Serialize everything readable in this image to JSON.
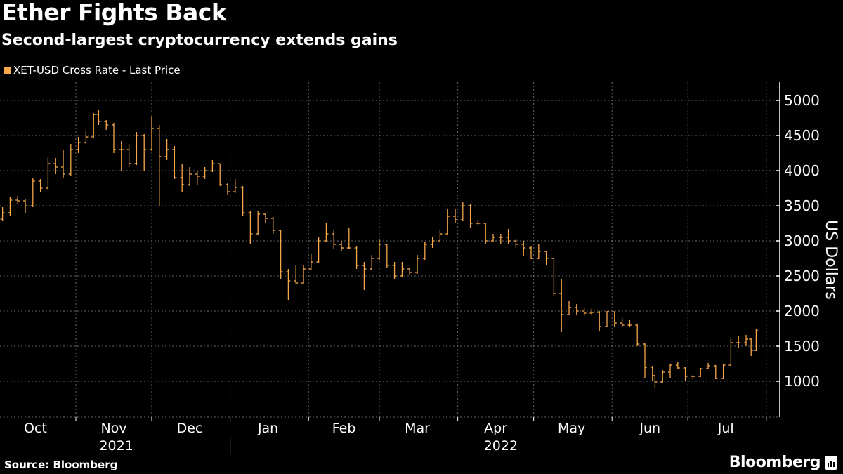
{
  "header": {
    "title": "Ether Fights Back",
    "subtitle": "Second-largest cryptocurrency extends gains"
  },
  "footer": {
    "source": "Source: Bloomberg",
    "logo_text": "Bloomberg"
  },
  "colors": {
    "series": "#f7a84a",
    "background": "#000000",
    "grid": "#666666",
    "text": "#ffffff"
  },
  "chart_data": {
    "type": "ohlc",
    "title": "Ether Fights Back",
    "subtitle": "Second-largest cryptocurrency extends gains",
    "legend": {
      "position": "top-left",
      "entries": [
        "XET-USD Cross Rate - Last Price"
      ]
    },
    "ylabel": "US Dollars",
    "yaxis_side": "right",
    "ylim": [
      490,
      5260
    ],
    "yticks": [
      1000,
      1500,
      2000,
      2500,
      3000,
      3500,
      4000,
      4500,
      5000
    ],
    "xlim": [
      "2021-09-30",
      "2022-07-31"
    ],
    "xtick_labels": [
      {
        "label": "Oct",
        "date": "2021-10-16"
      },
      {
        "label": "Nov",
        "date": "2021-11-16"
      },
      {
        "label": "Dec",
        "date": "2021-12-16"
      },
      {
        "label": "Jan",
        "date": "2022-01-16"
      },
      {
        "label": "Feb",
        "date": "2022-02-15"
      },
      {
        "label": "Mar",
        "date": "2022-03-16"
      },
      {
        "label": "Apr",
        "date": "2022-04-16"
      },
      {
        "label": "May",
        "date": "2022-05-16"
      },
      {
        "label": "Jun",
        "date": "2022-06-16"
      },
      {
        "label": "Jul",
        "date": "2022-07-16"
      }
    ],
    "year_labels": [
      {
        "label": "2021",
        "date": "2021-11-17"
      },
      {
        "label": "2022",
        "date": "2022-04-18"
      }
    ],
    "grid": true,
    "series": [
      {
        "name": "XET-USD Cross Rate - Last Price",
        "fields": [
          "date",
          "open",
          "high",
          "low",
          "close"
        ],
        "values": [
          [
            "2021-09-30",
            3000,
            3330,
            2970,
            3310
          ],
          [
            "2021-10-03",
            3310,
            3480,
            3280,
            3400
          ],
          [
            "2021-10-06",
            3400,
            3620,
            3360,
            3580
          ],
          [
            "2021-10-09",
            3580,
            3640,
            3520,
            3570
          ],
          [
            "2021-10-12",
            3570,
            3600,
            3400,
            3500
          ],
          [
            "2021-10-15",
            3500,
            3900,
            3480,
            3850
          ],
          [
            "2021-10-18",
            3850,
            3880,
            3700,
            3750
          ],
          [
            "2021-10-21",
            3750,
            4200,
            3720,
            4100
          ],
          [
            "2021-10-24",
            4100,
            4180,
            3950,
            4050
          ],
          [
            "2021-10-27",
            4050,
            4300,
            3900,
            3950
          ],
          [
            "2021-10-30",
            3950,
            4380,
            3920,
            4300
          ],
          [
            "2021-11-02",
            4300,
            4480,
            4250,
            4400
          ],
          [
            "2021-11-05",
            4400,
            4560,
            4380,
            4480
          ],
          [
            "2021-11-08",
            4480,
            4820,
            4460,
            4800
          ],
          [
            "2021-11-10",
            4800,
            4870,
            4650,
            4700
          ],
          [
            "2021-11-13",
            4700,
            4720,
            4580,
            4650
          ],
          [
            "2021-11-16",
            4650,
            4680,
            4250,
            4300
          ],
          [
            "2021-11-19",
            4300,
            4420,
            4000,
            4300
          ],
          [
            "2021-11-22",
            4300,
            4380,
            4050,
            4100
          ],
          [
            "2021-11-25",
            4100,
            4550,
            4080,
            4500
          ],
          [
            "2021-11-28",
            4500,
            4520,
            4000,
            4300
          ],
          [
            "2021-12-01",
            4300,
            4780,
            4280,
            4600
          ],
          [
            "2021-12-04",
            4600,
            4650,
            3500,
            4200
          ],
          [
            "2021-12-07",
            4200,
            4450,
            4150,
            4300
          ],
          [
            "2021-12-10",
            4300,
            4350,
            3880,
            3900
          ],
          [
            "2021-12-13",
            3900,
            4100,
            3700,
            3800
          ],
          [
            "2021-12-16",
            3800,
            4050,
            3780,
            3950
          ],
          [
            "2021-12-19",
            3950,
            4000,
            3800,
            3920
          ],
          [
            "2021-12-22",
            3920,
            4050,
            3880,
            4000
          ],
          [
            "2021-12-25",
            4000,
            4150,
            3980,
            4100
          ],
          [
            "2021-12-28",
            4100,
            4100,
            3780,
            3800
          ],
          [
            "2021-12-31",
            3800,
            3830,
            3650,
            3700
          ],
          [
            "2022-01-03",
            3700,
            3880,
            3680,
            3760
          ],
          [
            "2022-01-06",
            3760,
            3780,
            3350,
            3400
          ],
          [
            "2022-01-09",
            3400,
            3420,
            2950,
            3100
          ],
          [
            "2022-01-12",
            3100,
            3420,
            3080,
            3380
          ],
          [
            "2022-01-15",
            3380,
            3400,
            3250,
            3320
          ],
          [
            "2022-01-18",
            3320,
            3340,
            3100,
            3150
          ],
          [
            "2022-01-21",
            3150,
            3160,
            2450,
            2560
          ],
          [
            "2022-01-24",
            2560,
            2600,
            2160,
            2430
          ],
          [
            "2022-01-27",
            2430,
            2650,
            2380,
            2400
          ],
          [
            "2022-01-30",
            2400,
            2650,
            2390,
            2600
          ],
          [
            "2022-02-02",
            2600,
            2820,
            2580,
            2700
          ],
          [
            "2022-02-05",
            2700,
            3050,
            2680,
            3000
          ],
          [
            "2022-02-08",
            3000,
            3260,
            2990,
            3100
          ],
          [
            "2022-02-11",
            3100,
            3150,
            2880,
            2950
          ],
          [
            "2022-02-14",
            2950,
            3000,
            2850,
            2900
          ],
          [
            "2022-02-17",
            2900,
            3180,
            2880,
            2900
          ],
          [
            "2022-02-20",
            2900,
            2920,
            2600,
            2650
          ],
          [
            "2022-02-23",
            2650,
            2700,
            2300,
            2600
          ],
          [
            "2022-02-26",
            2600,
            2800,
            2580,
            2750
          ],
          [
            "2022-03-01",
            2750,
            3020,
            2730,
            2950
          ],
          [
            "2022-03-04",
            2950,
            2960,
            2620,
            2650
          ],
          [
            "2022-03-07",
            2650,
            2700,
            2450,
            2500
          ],
          [
            "2022-03-10",
            2500,
            2700,
            2480,
            2600
          ],
          [
            "2022-03-13",
            2600,
            2620,
            2510,
            2550
          ],
          [
            "2022-03-16",
            2550,
            2800,
            2530,
            2750
          ],
          [
            "2022-03-19",
            2750,
            2980,
            2730,
            2950
          ],
          [
            "2022-03-22",
            2950,
            3050,
            2900,
            3000
          ],
          [
            "2022-03-25",
            3000,
            3150,
            2980,
            3100
          ],
          [
            "2022-03-28",
            3100,
            3450,
            3080,
            3350
          ],
          [
            "2022-03-31",
            3350,
            3450,
            3250,
            3300
          ],
          [
            "2022-04-03",
            3300,
            3560,
            3280,
            3500
          ],
          [
            "2022-04-06",
            3500,
            3520,
            3180,
            3250
          ],
          [
            "2022-04-09",
            3250,
            3300,
            3220,
            3250
          ],
          [
            "2022-04-12",
            3250,
            3260,
            2950,
            3000
          ],
          [
            "2022-04-15",
            3000,
            3100,
            2980,
            3050
          ],
          [
            "2022-04-18",
            3050,
            3100,
            2960,
            3050
          ],
          [
            "2022-04-21",
            3050,
            3170,
            2950,
            3000
          ],
          [
            "2022-04-24",
            3000,
            3020,
            2900,
            2950
          ],
          [
            "2022-04-27",
            2950,
            3000,
            2780,
            2900
          ],
          [
            "2022-04-30",
            2900,
            2920,
            2740,
            2750
          ],
          [
            "2022-05-03",
            2750,
            2950,
            2740,
            2850
          ],
          [
            "2022-05-06",
            2850,
            2860,
            2660,
            2750
          ],
          [
            "2022-05-09",
            2750,
            2760,
            2220,
            2250
          ],
          [
            "2022-05-12",
            2250,
            2450,
            1700,
            1950
          ],
          [
            "2022-05-15",
            1950,
            2150,
            1940,
            2050
          ],
          [
            "2022-05-18",
            2050,
            2100,
            1950,
            2000
          ],
          [
            "2022-05-21",
            2000,
            2050,
            1930,
            1970
          ],
          [
            "2022-05-24",
            1970,
            2050,
            1950,
            1980
          ],
          [
            "2022-05-27",
            1980,
            2000,
            1720,
            1780
          ],
          [
            "2022-05-30",
            1780,
            2000,
            1770,
            1990
          ],
          [
            "2022-06-02",
            1990,
            1990,
            1780,
            1830
          ],
          [
            "2022-06-05",
            1830,
            1900,
            1780,
            1800
          ],
          [
            "2022-06-08",
            1800,
            1880,
            1780,
            1800
          ],
          [
            "2022-06-11",
            1800,
            1820,
            1500,
            1530
          ],
          [
            "2022-06-14",
            1530,
            1540,
            1050,
            1200
          ],
          [
            "2022-06-17",
            1200,
            1220,
            1000,
            1080
          ],
          [
            "2022-06-18",
            1080,
            1090,
            900,
            990
          ],
          [
            "2022-06-21",
            990,
            1160,
            980,
            1130
          ],
          [
            "2022-06-24",
            1130,
            1240,
            1050,
            1230
          ],
          [
            "2022-06-27",
            1230,
            1270,
            1180,
            1190
          ],
          [
            "2022-06-30",
            1190,
            1200,
            1000,
            1070
          ],
          [
            "2022-07-03",
            1070,
            1090,
            1030,
            1070
          ],
          [
            "2022-07-06",
            1070,
            1190,
            1060,
            1180
          ],
          [
            "2022-07-09",
            1180,
            1260,
            1170,
            1220
          ],
          [
            "2022-07-12",
            1220,
            1230,
            1030,
            1040
          ],
          [
            "2022-07-15",
            1040,
            1250,
            1030,
            1230
          ],
          [
            "2022-07-18",
            1230,
            1620,
            1220,
            1550
          ],
          [
            "2022-07-21",
            1550,
            1640,
            1480,
            1550
          ],
          [
            "2022-07-24",
            1550,
            1660,
            1500,
            1600
          ],
          [
            "2022-07-26",
            1600,
            1610,
            1360,
            1440
          ],
          [
            "2022-07-28",
            1440,
            1750,
            1430,
            1720
          ]
        ]
      }
    ]
  }
}
